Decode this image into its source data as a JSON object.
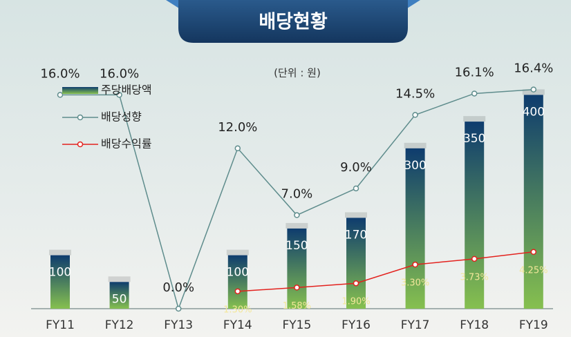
{
  "chart_data": {
    "type": "bar-line",
    "title": "배당현황",
    "subtitle": "(단위 : 원)",
    "categories": [
      "FY11",
      "FY12",
      "FY13",
      "FY14",
      "FY15",
      "FY16",
      "FY17",
      "FY18",
      "FY19"
    ],
    "ylim": [
      0,
      500
    ],
    "y2lim": [
      0,
      20
    ],
    "series": [
      {
        "name": "주당배당액",
        "type": "bar",
        "color": "#0e3c6e",
        "color2": "#86c04f",
        "values": [
          100,
          50,
          0,
          100,
          150,
          170,
          300,
          350,
          400
        ],
        "value_labels": [
          "100",
          "50",
          null,
          "100",
          "150",
          "170",
          "300",
          "350",
          "400"
        ]
      },
      {
        "name": "배당성향",
        "type": "line",
        "axis": "y2",
        "color": "#5e8c8c",
        "values": [
          16.0,
          16.0,
          0.0,
          12.0,
          7.0,
          9.0,
          14.5,
          16.1,
          16.4
        ],
        "value_labels": [
          "16.0%",
          "16.0%",
          "0.0%",
          "12.0%",
          "7.0%",
          "9.0%",
          "14.5%",
          "16.1%",
          "16.4%"
        ]
      },
      {
        "name": "배당수익률",
        "type": "line",
        "axis": "y2",
        "color": "#e3211d",
        "values": [
          null,
          null,
          null,
          1.3,
          1.58,
          1.9,
          3.3,
          3.73,
          4.25
        ],
        "value_labels": [
          null,
          null,
          null,
          "1.30%",
          "1.58%",
          "1.90%",
          "3.30%",
          "3.73%",
          "4.25%"
        ]
      }
    ]
  }
}
